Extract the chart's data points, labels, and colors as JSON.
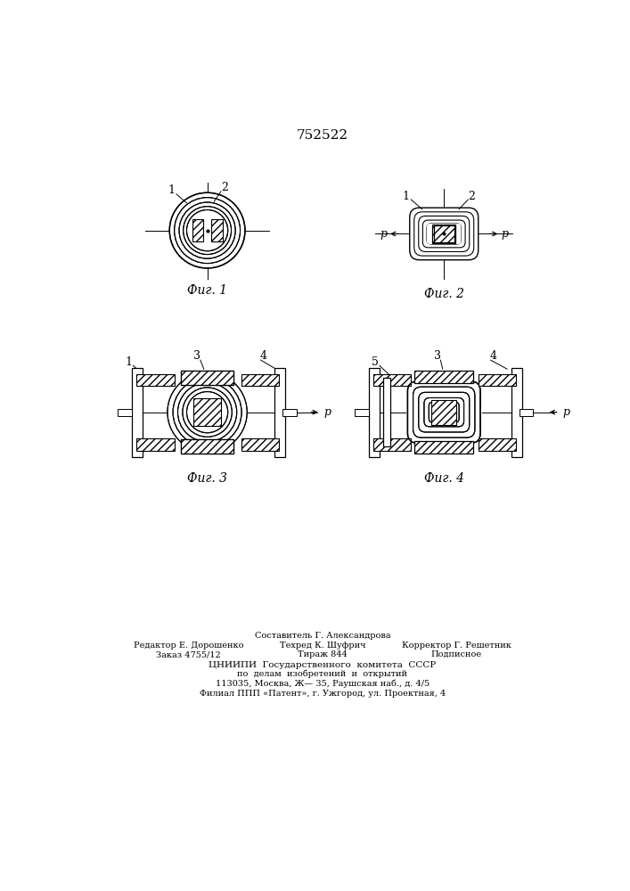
{
  "patent_number": "752522",
  "bg_color": "#ffffff",
  "line_color": "#000000",
  "fig1_label": "Фиг. 1",
  "fig2_label": "Фиг. 2",
  "fig3_label": "Фиг. 3",
  "fig4_label": "Фиг. 4",
  "footer_line1": "Составитель Г. Александрова",
  "footer_line2_left": "Редактор Е. Дорошенко",
  "footer_line2_mid": "Техред К. Шуфрич",
  "footer_line2_right": "Корректор Г. Решетник",
  "footer_line3_left": "Заказ 4755/12",
  "footer_line3_mid": "Тираж 844",
  "footer_line3_right": "Подписное",
  "footer_line4": "ЦНИИПИ  Государственного  комитета  СССР",
  "footer_line5": "по  делам  изобретений  и  открытий",
  "footer_line6": "113035, Москва, Ж— 35, Раушская наб., д. 4/5",
  "footer_line7": "Филиал ППП «Патент», г. Ужгород, ул. Проектная, 4"
}
